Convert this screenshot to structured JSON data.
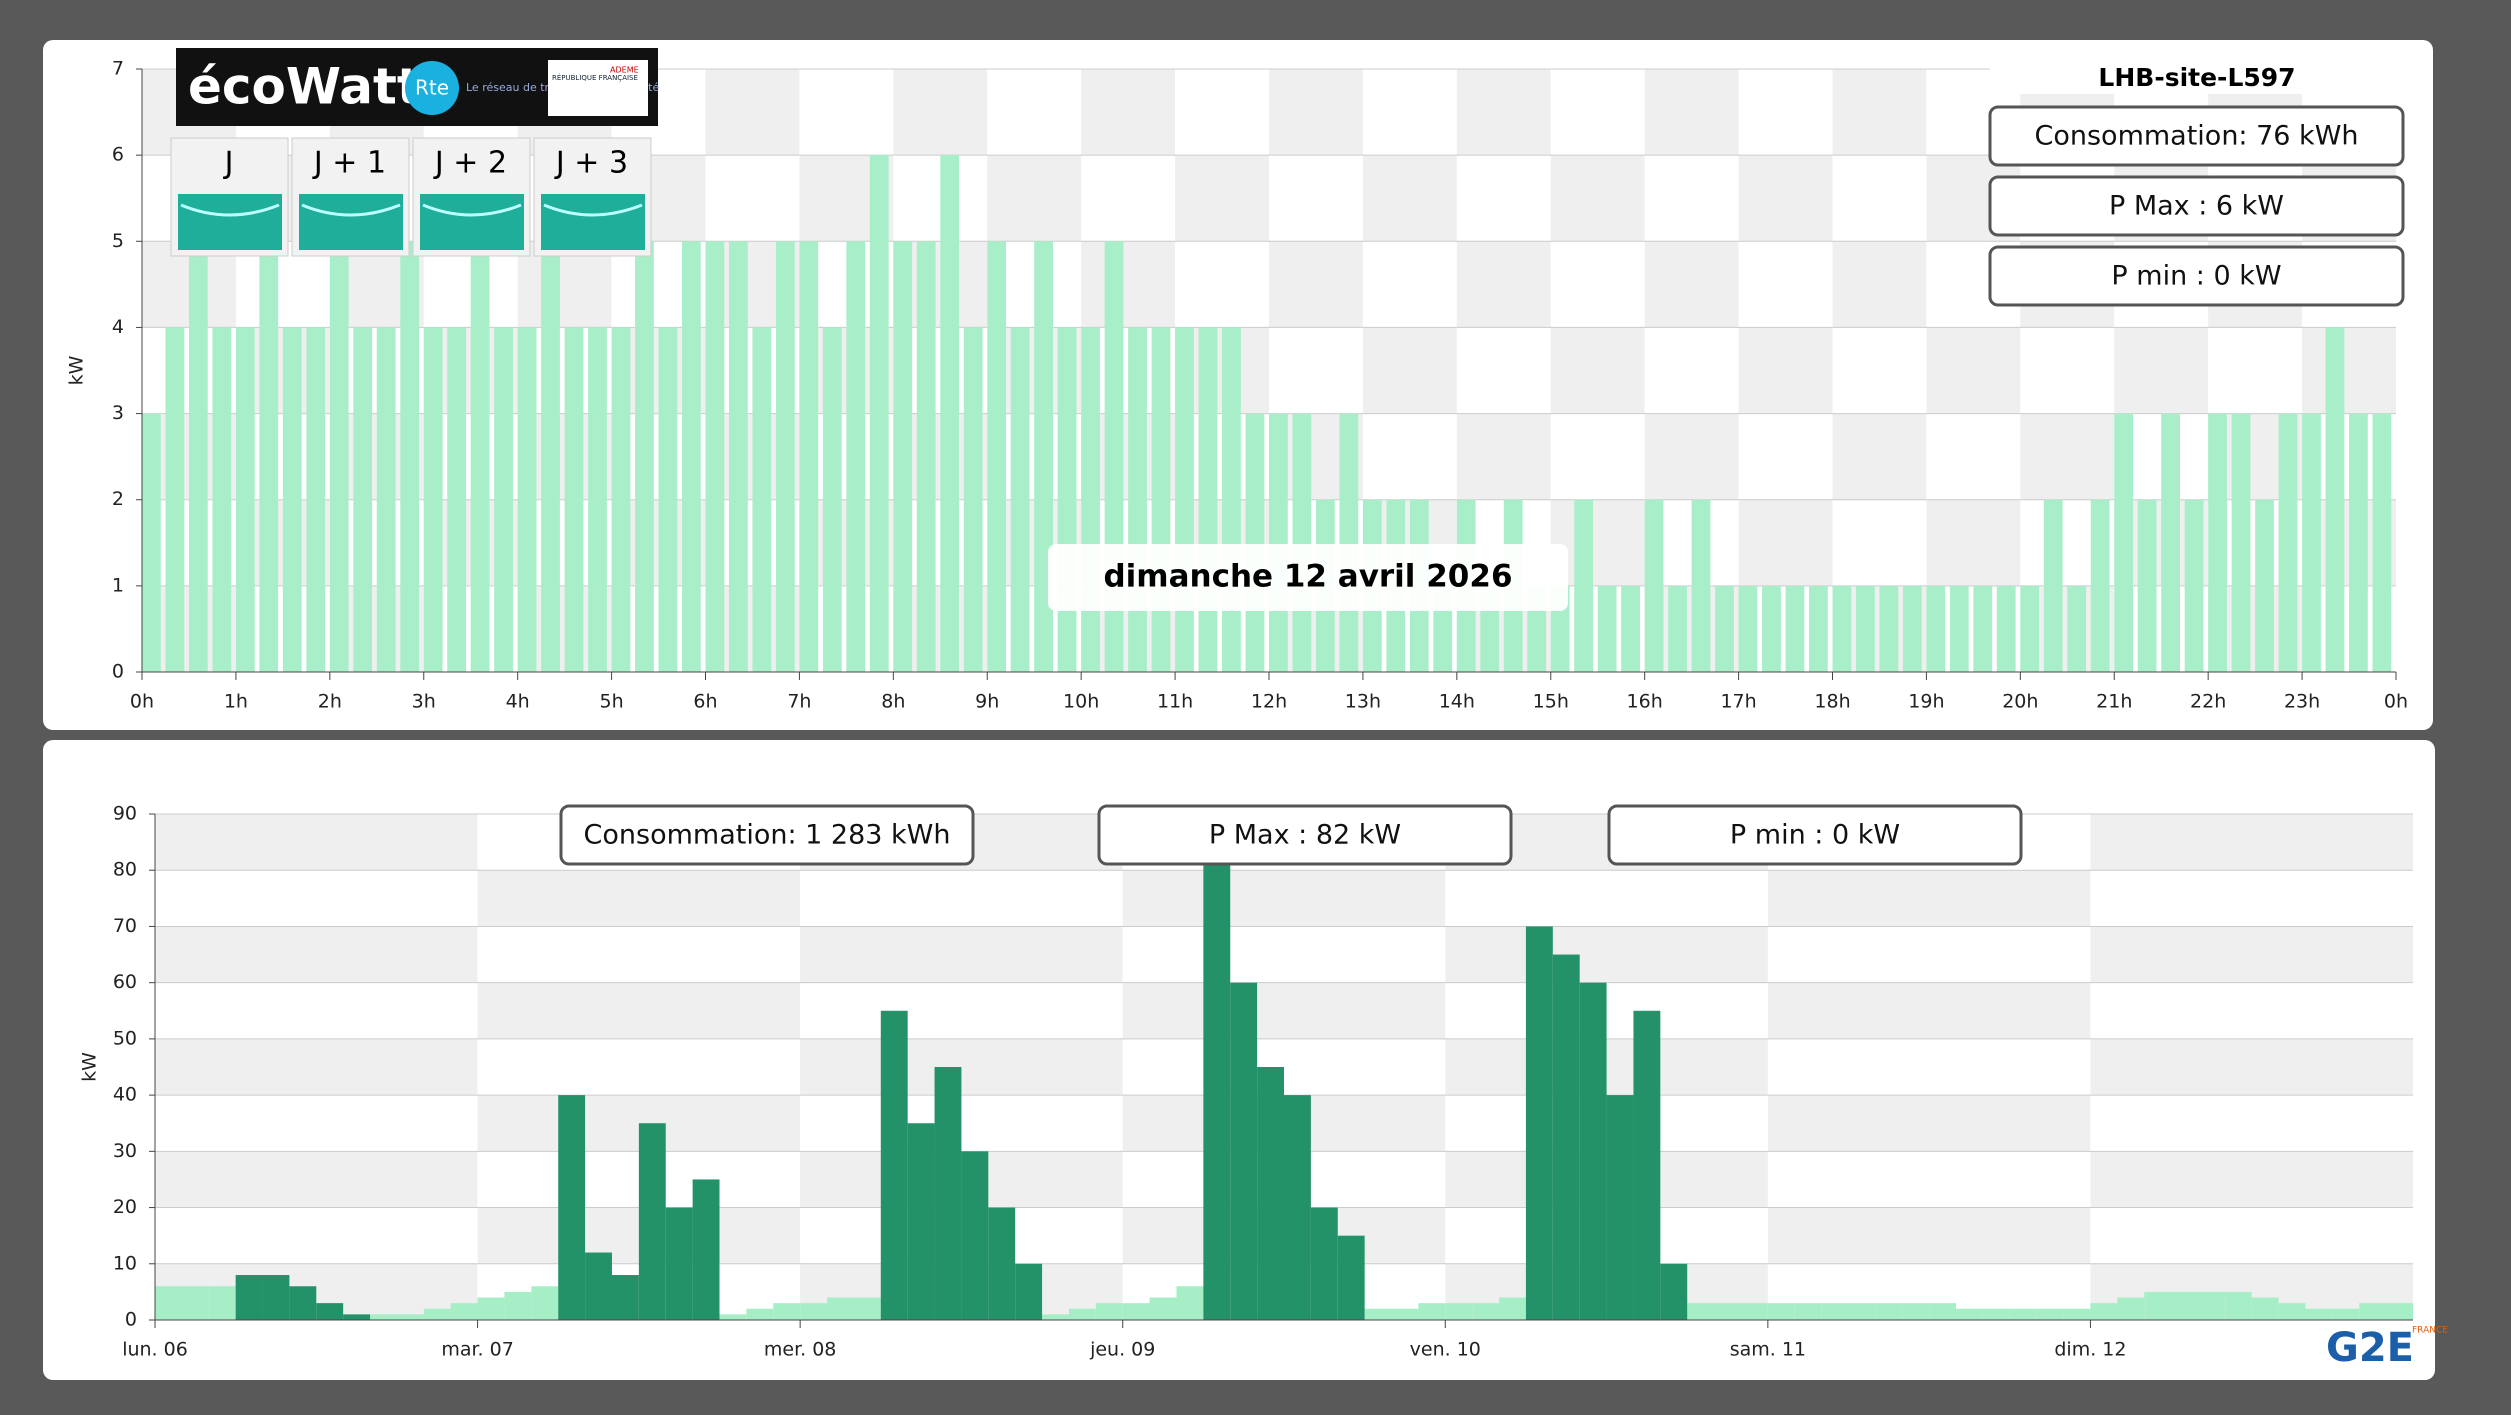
{
  "site": "LHB-site-L597",
  "date": "dimanche 12 avril 2026",
  "ecowatt": {
    "logo": "écoWatt",
    "rte": "Rte",
    "rte_text": "Le réseau de transport d'électricité",
    "gov": "RÉPUBLIQUE FRANÇAISE",
    "ademe": "ADEME",
    "days": [
      "J",
      "J + 1",
      "J + 2",
      "J + 3"
    ]
  },
  "brand": {
    "name": "G2E",
    "country": "FRANCE"
  },
  "chart_data": [
    {
      "type": "bar",
      "y_label": "kW",
      "color": "#a8efc9",
      "grid": true,
      "stats": [
        "Consommation: 76 kWh",
        "P Max :  6 kW",
        "P min : 0 kW"
      ],
      "x": [
        0,
        0.25,
        0.5,
        0.75,
        1,
        1.25,
        1.5,
        1.75,
        2,
        2.25,
        2.5,
        2.75,
        3,
        3.25,
        3.5,
        3.75,
        4,
        4.25,
        4.5,
        4.75,
        5,
        5.25,
        5.5,
        5.75,
        6,
        6.25,
        6.5,
        6.75,
        7,
        7.25,
        7.5,
        7.75,
        8,
        8.25,
        8.5,
        8.75,
        9,
        9.25,
        9.5,
        9.75,
        10,
        10.25,
        10.5,
        10.75,
        11,
        11.25,
        11.5,
        11.75,
        12,
        12.25,
        12.5,
        12.75,
        13,
        13.25,
        13.5,
        13.75,
        14,
        14.25,
        14.5,
        14.75,
        15,
        15.25,
        15.5,
        15.75,
        16,
        16.25,
        16.5,
        16.75,
        17,
        17.25,
        17.5,
        17.75,
        18,
        18.25,
        18.5,
        18.75,
        19,
        19.25,
        19.5,
        19.75,
        20,
        20.25,
        20.5,
        20.75,
        21,
        21.25,
        21.5,
        21.75,
        22,
        22.25,
        22.5,
        22.75,
        23,
        23.25,
        23.5,
        23.75
      ],
      "values": [
        3,
        4,
        5,
        4,
        4,
        5,
        4,
        4,
        5,
        4,
        4,
        5,
        4,
        4,
        5,
        4,
        4,
        5,
        4,
        4,
        4,
        5,
        4,
        5,
        5,
        5,
        4,
        5,
        5,
        4,
        5,
        6,
        5,
        5,
        6,
        4,
        5,
        4,
        5,
        4,
        4,
        5,
        4,
        4,
        4,
        4,
        4,
        3,
        3,
        3,
        2,
        3,
        2,
        2,
        2,
        1,
        2,
        1,
        2,
        1,
        1,
        2,
        1,
        1,
        2,
        1,
        2,
        1,
        1,
        1,
        1,
        1,
        1,
        1,
        1,
        1,
        1,
        1,
        1,
        1,
        1,
        2,
        1,
        2,
        3,
        2,
        3,
        2,
        3,
        3,
        2,
        3,
        3,
        4,
        3,
        3
      ],
      "xlim": [
        0,
        24
      ],
      "xticks": [
        {
          "value": 0,
          "label": "0h"
        },
        {
          "value": 1,
          "label": "1h"
        },
        {
          "value": 2,
          "label": "2h"
        },
        {
          "value": 3,
          "label": "3h"
        },
        {
          "value": 4,
          "label": "4h"
        },
        {
          "value": 5,
          "label": "5h"
        },
        {
          "value": 6,
          "label": "6h"
        },
        {
          "value": 7,
          "label": "7h"
        },
        {
          "value": 8,
          "label": "8h"
        },
        {
          "value": 9,
          "label": "9h"
        },
        {
          "value": 10,
          "label": "10h"
        },
        {
          "value": 11,
          "label": "11h"
        },
        {
          "value": 12,
          "label": "12h"
        },
        {
          "value": 13,
          "label": "13h"
        },
        {
          "value": 14,
          "label": "14h"
        },
        {
          "value": 15,
          "label": "15h"
        },
        {
          "value": 16,
          "label": "16h"
        },
        {
          "value": 17,
          "label": "17h"
        },
        {
          "value": 18,
          "label": "18h"
        },
        {
          "value": 19,
          "label": "19h"
        },
        {
          "value": 20,
          "label": "20h"
        },
        {
          "value": 21,
          "label": "21h"
        },
        {
          "value": 22,
          "label": "22h"
        },
        {
          "value": 23,
          "label": "23h"
        },
        {
          "value": 24,
          "label": "0h"
        }
      ],
      "ylim": [
        0,
        7
      ],
      "yticks": [
        0,
        1,
        2,
        3,
        4,
        5,
        6,
        7
      ]
    },
    {
      "type": "bar",
      "y_label": "kW",
      "grid": true,
      "stats": [
        "Consommation: 1 283 kWh",
        "P Max :  82 kW",
        "P min : 0 kW"
      ],
      "x": [
        0,
        2,
        4,
        6,
        8,
        10,
        12,
        14,
        16,
        18,
        20,
        22,
        24,
        26,
        28,
        30,
        32,
        34,
        36,
        38,
        40,
        42,
        44,
        46,
        48,
        50,
        52,
        54,
        56,
        58,
        60,
        62,
        64,
        66,
        68,
        70,
        72,
        74,
        76,
        78,
        80,
        82,
        84,
        86,
        88,
        90,
        92,
        94,
        96,
        98,
        100,
        102,
        104,
        106,
        108,
        110,
        112,
        114,
        116,
        118,
        120,
        122,
        124,
        126,
        128,
        130,
        132,
        134,
        136,
        138,
        140,
        142,
        144,
        146,
        148,
        150,
        152,
        154,
        156,
        158,
        160,
        162,
        164,
        166
      ],
      "series": [
        {
          "color": "#a6efc6",
          "values": [
            6,
            6,
            6,
            null,
            null,
            null,
            null,
            null,
            1,
            1,
            2,
            3,
            4,
            5,
            6,
            null,
            null,
            null,
            null,
            null,
            null,
            1,
            2,
            3,
            3,
            4,
            4,
            null,
            null,
            null,
            null,
            null,
            null,
            1,
            2,
            3,
            3,
            4,
            6,
            null,
            null,
            null,
            null,
            null,
            null,
            2,
            2,
            3,
            3,
            3,
            4,
            null,
            null,
            null,
            null,
            null,
            null,
            3,
            3,
            3,
            3,
            3,
            3,
            3,
            3,
            3,
            3,
            2,
            2,
            2,
            2,
            2,
            3,
            4,
            5,
            5,
            5,
            5,
            4,
            3,
            2,
            2,
            3,
            3
          ]
        },
        {
          "color": "#239268",
          "values": [
            null,
            null,
            null,
            8,
            8,
            6,
            3,
            1,
            null,
            null,
            null,
            null,
            null,
            null,
            null,
            40,
            12,
            8,
            35,
            20,
            25,
            null,
            null,
            null,
            null,
            null,
            null,
            55,
            35,
            45,
            30,
            20,
            10,
            null,
            null,
            null,
            null,
            null,
            null,
            82,
            60,
            45,
            40,
            20,
            15,
            null,
            null,
            null,
            null,
            null,
            null,
            70,
            65,
            60,
            40,
            55,
            10,
            null,
            null,
            null,
            null,
            null,
            null,
            null,
            null,
            null,
            null,
            null,
            null,
            null,
            null,
            null,
            null,
            null,
            null,
            null,
            null,
            null,
            null,
            null,
            null,
            null,
            null,
            null
          ]
        }
      ],
      "xlim": [
        0,
        168
      ],
      "xticks": [
        {
          "value": 0,
          "label": "lun. 06"
        },
        {
          "value": 24,
          "label": "mar. 07"
        },
        {
          "value": 48,
          "label": "mer. 08"
        },
        {
          "value": 72,
          "label": "jeu. 09"
        },
        {
          "value": 96,
          "label": "ven. 10"
        },
        {
          "value": 120,
          "label": "sam. 11"
        },
        {
          "value": 144,
          "label": "dim. 12"
        }
      ],
      "ylim": [
        0,
        90
      ],
      "yticks": [
        0,
        10,
        20,
        30,
        40,
        50,
        60,
        70,
        80,
        90
      ]
    }
  ]
}
